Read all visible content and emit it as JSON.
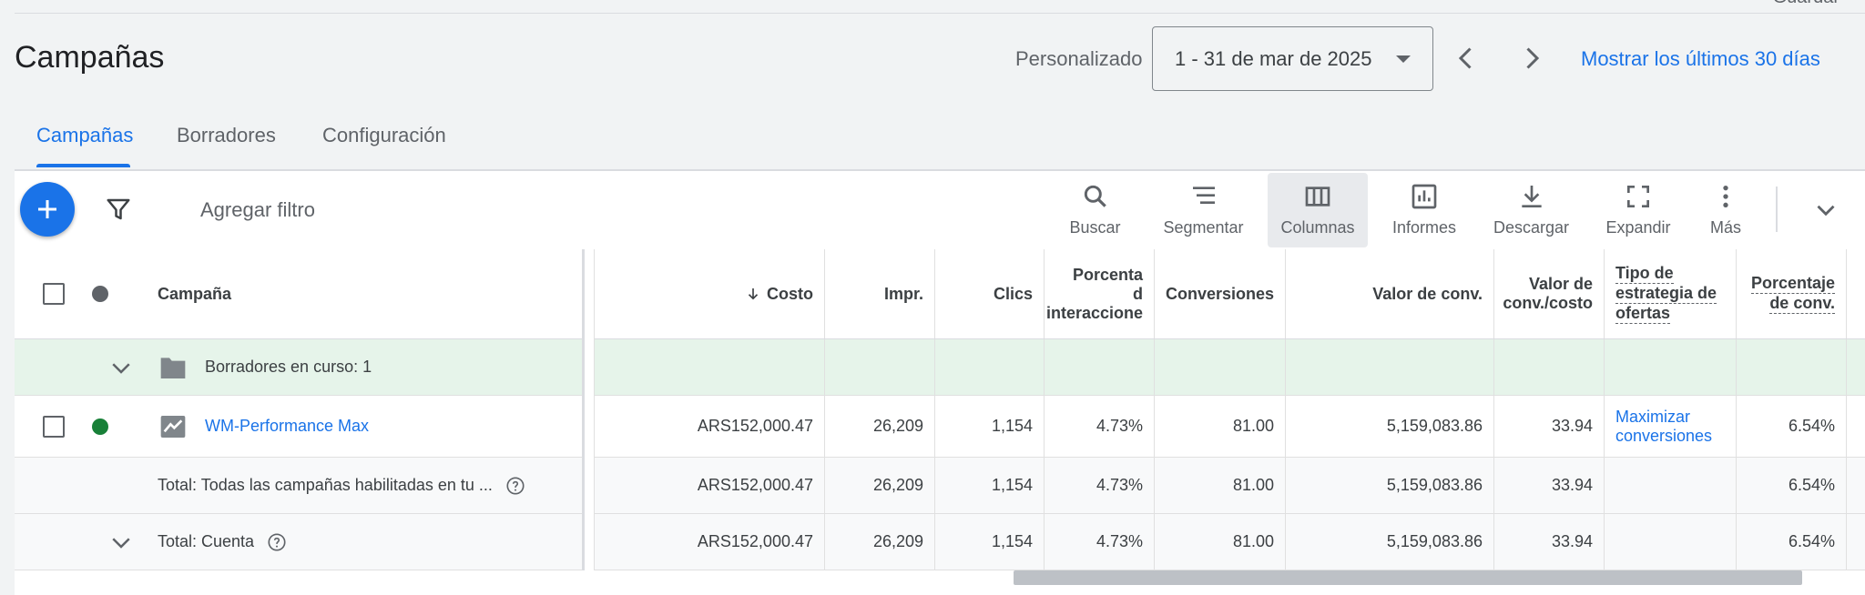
{
  "header": {
    "partial_top_text": "Guardar",
    "page_title": "Campañas",
    "range_label": "Personalizado",
    "date_range": "1 - 31 de mar de 2025",
    "last30_link": "Mostrar los últimos 30 días"
  },
  "tabs": [
    {
      "label": "Campañas",
      "active": true
    },
    {
      "label": "Borradores",
      "active": false
    },
    {
      "label": "Configuración",
      "active": false
    }
  ],
  "toolbar": {
    "add_filter": "Agregar filtro",
    "tools": [
      {
        "label": "Buscar",
        "icon": "search-icon"
      },
      {
        "label": "Segmentar",
        "icon": "segment-icon"
      },
      {
        "label": "Columnas",
        "icon": "columns-icon",
        "selected": true
      },
      {
        "label": "Informes",
        "icon": "reports-icon"
      },
      {
        "label": "Descargar",
        "icon": "download-icon"
      },
      {
        "label": "Expandir",
        "icon": "expand-icon"
      },
      {
        "label": "Más",
        "icon": "more-vert-icon"
      }
    ]
  },
  "table": {
    "headers": {
      "campaign": "Campaña",
      "cost": "Costo",
      "impr": "Impr.",
      "clicks": "Clics",
      "interaction_rate_l1": "Porcenta",
      "interaction_rate_l2": "d",
      "interaction_rate_l3": "interaccione",
      "conversions": "Conversiones",
      "conv_value": "Valor de conv.",
      "conv_value_cost_l1": "Valor de",
      "conv_value_cost_l2": "conv./costo",
      "bid_strategy_l1": "Tipo de",
      "bid_strategy_l2": "estrategia de",
      "bid_strategy_l3": "ofertas",
      "conv_rate_l1": "Porcentaje",
      "conv_rate_l2": "de conv."
    },
    "drafts_row": {
      "label": "Borradores en curso: 1"
    },
    "campaign_row": {
      "name": "WM-Performance Max",
      "status_color": "#188038",
      "cost": "ARS152,000.47",
      "impr": "26,209",
      "clicks": "1,154",
      "interaction_rate": "4.73%",
      "conversions": "81.00",
      "conv_value": "5,159,083.86",
      "conv_value_cost": "33.94",
      "bid_strategy_l1": "Maximizar",
      "bid_strategy_l2": "conversiones",
      "conv_rate": "6.54%"
    },
    "total_enabled": {
      "label": "Total: Todas las campañas habilitadas en tu ...",
      "cost": "ARS152,000.47",
      "impr": "26,209",
      "clicks": "1,154",
      "interaction_rate": "4.73%",
      "conversions": "81.00",
      "conv_value": "5,159,083.86",
      "conv_value_cost": "33.94",
      "conv_rate": "6.54%"
    },
    "total_account": {
      "label": "Total: Cuenta",
      "cost": "ARS152,000.47",
      "impr": "26,209",
      "clicks": "1,154",
      "interaction_rate": "4.73%",
      "conversions": "81.00",
      "conv_value": "5,159,083.86",
      "conv_value_cost": "33.94",
      "conv_rate": "6.54%"
    }
  },
  "colors": {
    "accent": "#1a73e8",
    "draft_bg": "#e6f4ea",
    "enabled": "#188038"
  }
}
